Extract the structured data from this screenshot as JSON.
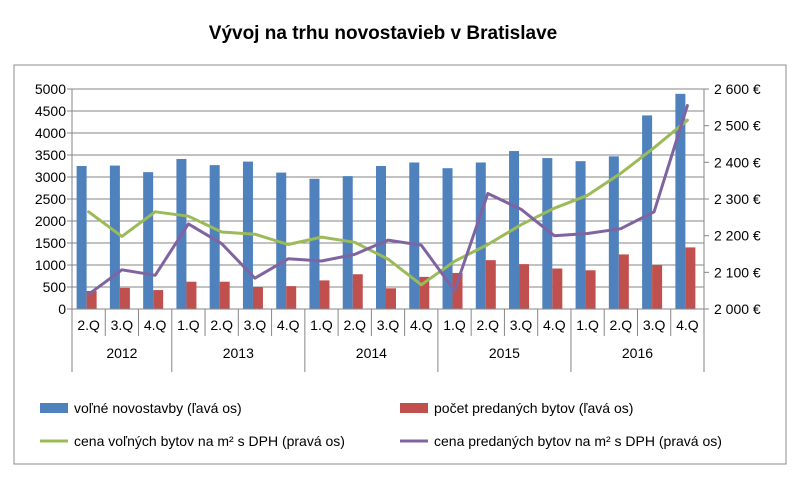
{
  "chart_data": {
    "type": "bar",
    "title": "Vývoj na trhu novostavieb v Bratislave",
    "categories": [
      "2.Q",
      "3.Q",
      "4.Q",
      "1.Q",
      "2.Q",
      "3.Q",
      "4.Q",
      "1.Q",
      "2.Q",
      "3.Q",
      "4.Q",
      "1.Q",
      "2.Q",
      "3.Q",
      "4.Q",
      "1.Q",
      "2.Q",
      "3.Q",
      "4.Q"
    ],
    "years": [
      {
        "label": "2012",
        "count": 3
      },
      {
        "label": "2013",
        "count": 4
      },
      {
        "label": "2014",
        "count": 4
      },
      {
        "label": "2015",
        "count": 4
      },
      {
        "label": "2016",
        "count": 4
      }
    ],
    "y_left": {
      "min": 0,
      "max": 5000,
      "step": 500,
      "ticks": [
        "0",
        "500",
        "1000",
        "1500",
        "2000",
        "2500",
        "3000",
        "3500",
        "4000",
        "4500",
        "5000"
      ]
    },
    "y_right": {
      "min": 2000,
      "max": 2600,
      "step": 100,
      "ticks": [
        "2 000 €",
        "2 100 €",
        "2 200 €",
        "2 300 €",
        "2 400 €",
        "2 500 €",
        "2 600 €"
      ]
    },
    "series": [
      {
        "name": "voľné novostavby (ľavá os)",
        "type": "bar",
        "axis": "left",
        "color": "#4f81bd",
        "values": [
          3250,
          3260,
          3110,
          3410,
          3270,
          3350,
          3100,
          2960,
          3020,
          3250,
          3330,
          3200,
          3330,
          3590,
          3430,
          3360,
          3470,
          4400,
          4890
        ]
      },
      {
        "name": "počet predaných bytov (ľavá os)",
        "type": "bar",
        "axis": "left",
        "color": "#c0504d",
        "values": [
          410,
          480,
          430,
          620,
          620,
          500,
          520,
          650,
          790,
          470,
          730,
          820,
          1110,
          1020,
          920,
          880,
          1240,
          1000,
          1400
        ]
      },
      {
        "name": "cena voľných bytov na m² s DPH (pravá os)",
        "type": "line",
        "axis": "right",
        "color": "#9bbb59",
        "values": [
          2265,
          2198,
          2265,
          2253,
          2210,
          2204,
          2176,
          2196,
          2182,
          2136,
          2066,
          2130,
          2176,
          2230,
          2275,
          2310,
          2370,
          2440,
          2515
        ]
      },
      {
        "name": "cena predaných bytov na m² s  DPH (pravá os)",
        "type": "line",
        "axis": "right",
        "color": "#8064a2",
        "values": [
          2040,
          2107,
          2092,
          2232,
          2178,
          2084,
          2137,
          2131,
          2149,
          2188,
          2174,
          2050,
          2315,
          2272,
          2200,
          2206,
          2219,
          2265,
          2555
        ]
      }
    ],
    "legend_position": "bottom",
    "grid": true
  }
}
